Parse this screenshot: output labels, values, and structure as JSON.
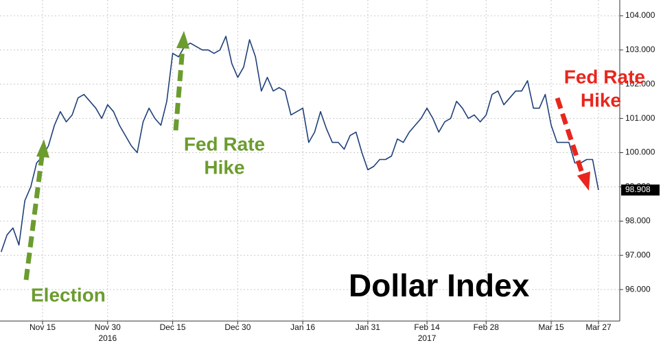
{
  "chart_data": {
    "type": "line",
    "title": "Dollar Index",
    "categories": [
      null,
      null,
      null,
      null,
      null,
      null,
      null,
      "Nov 15",
      null,
      null,
      null,
      null,
      null,
      null,
      null,
      null,
      null,
      null,
      "Nov 30",
      null,
      null,
      null,
      null,
      null,
      null,
      null,
      null,
      null,
      null,
      "Dec 15",
      null,
      null,
      null,
      null,
      null,
      null,
      null,
      null,
      null,
      null,
      "Dec 30",
      null,
      null,
      null,
      null,
      null,
      null,
      null,
      null,
      null,
      null,
      "Jan 16",
      null,
      null,
      null,
      null,
      null,
      null,
      null,
      null,
      null,
      null,
      "Jan 31",
      null,
      null,
      null,
      null,
      null,
      null,
      null,
      null,
      null,
      "Feb 14",
      null,
      null,
      null,
      null,
      null,
      null,
      null,
      null,
      null,
      "Feb 28",
      null,
      null,
      null,
      null,
      null,
      null,
      null,
      null,
      null,
      null,
      "Mar 15",
      null,
      null,
      null,
      null,
      null,
      null,
      null,
      "Mar 27"
    ],
    "year_labels": [
      "2016",
      "2017"
    ],
    "series": [
      {
        "name": "Dollar Index",
        "color": "#1f3f78",
        "values": [
          97.1,
          97.6,
          97.8,
          97.3,
          98.6,
          99.0,
          99.7,
          99.9,
          100.2,
          100.8,
          101.2,
          100.9,
          101.1,
          101.6,
          101.7,
          101.5,
          101.3,
          101.0,
          101.4,
          101.2,
          100.8,
          100.5,
          100.2,
          100.0,
          100.9,
          101.3,
          101.0,
          100.8,
          101.5,
          102.9,
          102.8,
          103.1,
          103.2,
          103.1,
          103.0,
          103.0,
          102.9,
          103.0,
          103.4,
          102.6,
          102.2,
          102.5,
          103.3,
          102.8,
          101.8,
          102.2,
          101.8,
          101.9,
          101.8,
          101.1,
          101.2,
          101.3,
          100.3,
          100.6,
          101.2,
          100.7,
          100.3,
          100.3,
          100.1,
          100.5,
          100.6,
          100.0,
          99.5,
          99.6,
          99.8,
          99.8,
          99.9,
          100.4,
          100.3,
          100.6,
          100.8,
          101.0,
          101.3,
          101.0,
          100.6,
          100.9,
          101.0,
          101.5,
          101.3,
          101.0,
          101.1,
          100.9,
          101.1,
          101.7,
          101.8,
          101.4,
          101.6,
          101.8,
          101.8,
          102.1,
          101.3,
          101.3,
          101.7,
          100.8,
          100.3,
          100.3,
          100.3,
          99.7,
          99.7,
          99.8,
          99.8,
          98.908
        ]
      }
    ],
    "ylim": [
      95.08,
      104.46
    ],
    "yticks": [
      {
        "value": 96,
        "label": "96.000"
      },
      {
        "value": 97,
        "label": "97.000"
      },
      {
        "value": 98,
        "label": "98.000"
      },
      {
        "value": 99,
        "label": "99.000"
      },
      {
        "value": 100,
        "label": "100.000"
      },
      {
        "value": 101,
        "label": "101.000"
      },
      {
        "value": 102,
        "label": "102.000"
      },
      {
        "value": 103,
        "label": "103.000"
      },
      {
        "value": 104,
        "label": "104.000"
      }
    ],
    "grid": true,
    "annotations": [
      [
        "Election"
      ],
      [
        "Fed Rate",
        "Hike"
      ],
      [
        "Fed Rate",
        "Hike"
      ]
    ]
  }
}
